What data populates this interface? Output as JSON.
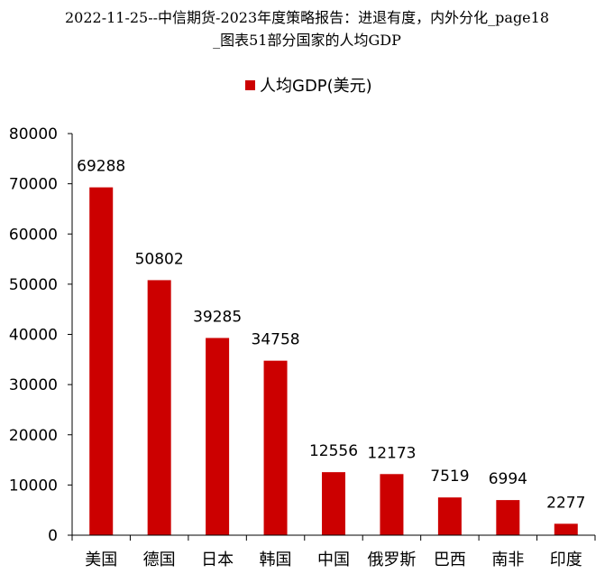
{
  "title_line1": "2022-11-25--中信期货-2023年度策略报告：进退有度，内外分化_page18",
  "title_line2": "_图表51部分国家的人均GDP",
  "colors": {
    "bar": "#cc0000",
    "axis": "#000000"
  },
  "chart_data": {
    "type": "bar",
    "title": "",
    "xlabel": "",
    "ylabel": "",
    "legend": {
      "position": "top-center",
      "entries": [
        "人均GDP(美元)"
      ]
    },
    "grid": false,
    "ylim": [
      0,
      80000
    ],
    "yticks": [
      0,
      10000,
      20000,
      30000,
      40000,
      50000,
      60000,
      70000,
      80000
    ],
    "categories": [
      "美国",
      "德国",
      "日本",
      "韩国",
      "中国",
      "俄罗斯",
      "巴西",
      "南非",
      "印度"
    ],
    "series": [
      {
        "name": "人均GDP(美元)",
        "values": [
          69288,
          50802,
          39285,
          34758,
          12556,
          12173,
          7519,
          6994,
          2277
        ]
      }
    ]
  }
}
